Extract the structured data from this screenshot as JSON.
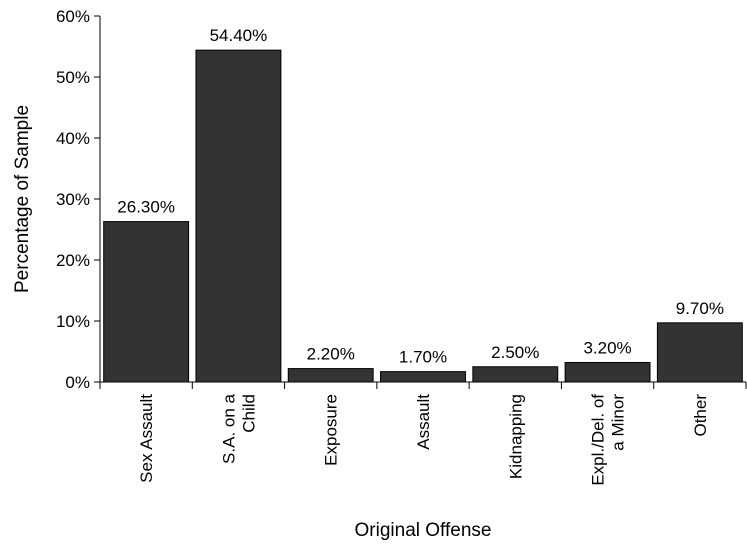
{
  "chart_data": {
    "type": "bar",
    "title": "",
    "xlabel": "Original Offense",
    "ylabel": "Percentage of Sample",
    "ylim": [
      0,
      60
    ],
    "yticks": [
      0,
      10,
      20,
      30,
      40,
      50,
      60
    ],
    "ytick_labels": [
      "0%",
      "10%",
      "20%",
      "30%",
      "40%",
      "50%",
      "60%"
    ],
    "categories": [
      [
        "Sex Assault"
      ],
      [
        "S.A. on a",
        "Child"
      ],
      [
        "Exposure"
      ],
      [
        "Assault"
      ],
      [
        "Kidnapping"
      ],
      [
        "Expl./Del. of",
        "a Minor"
      ],
      [
        "Other"
      ]
    ],
    "values": [
      26.3,
      54.4,
      2.2,
      1.7,
      2.5,
      3.2,
      9.7
    ],
    "value_labels": [
      "26.30%",
      "54.40%",
      "2.20%",
      "1.70%",
      "2.50%",
      "3.20%",
      "9.70%"
    ],
    "bar_color": "#333333",
    "grid": false,
    "legend": "none"
  }
}
